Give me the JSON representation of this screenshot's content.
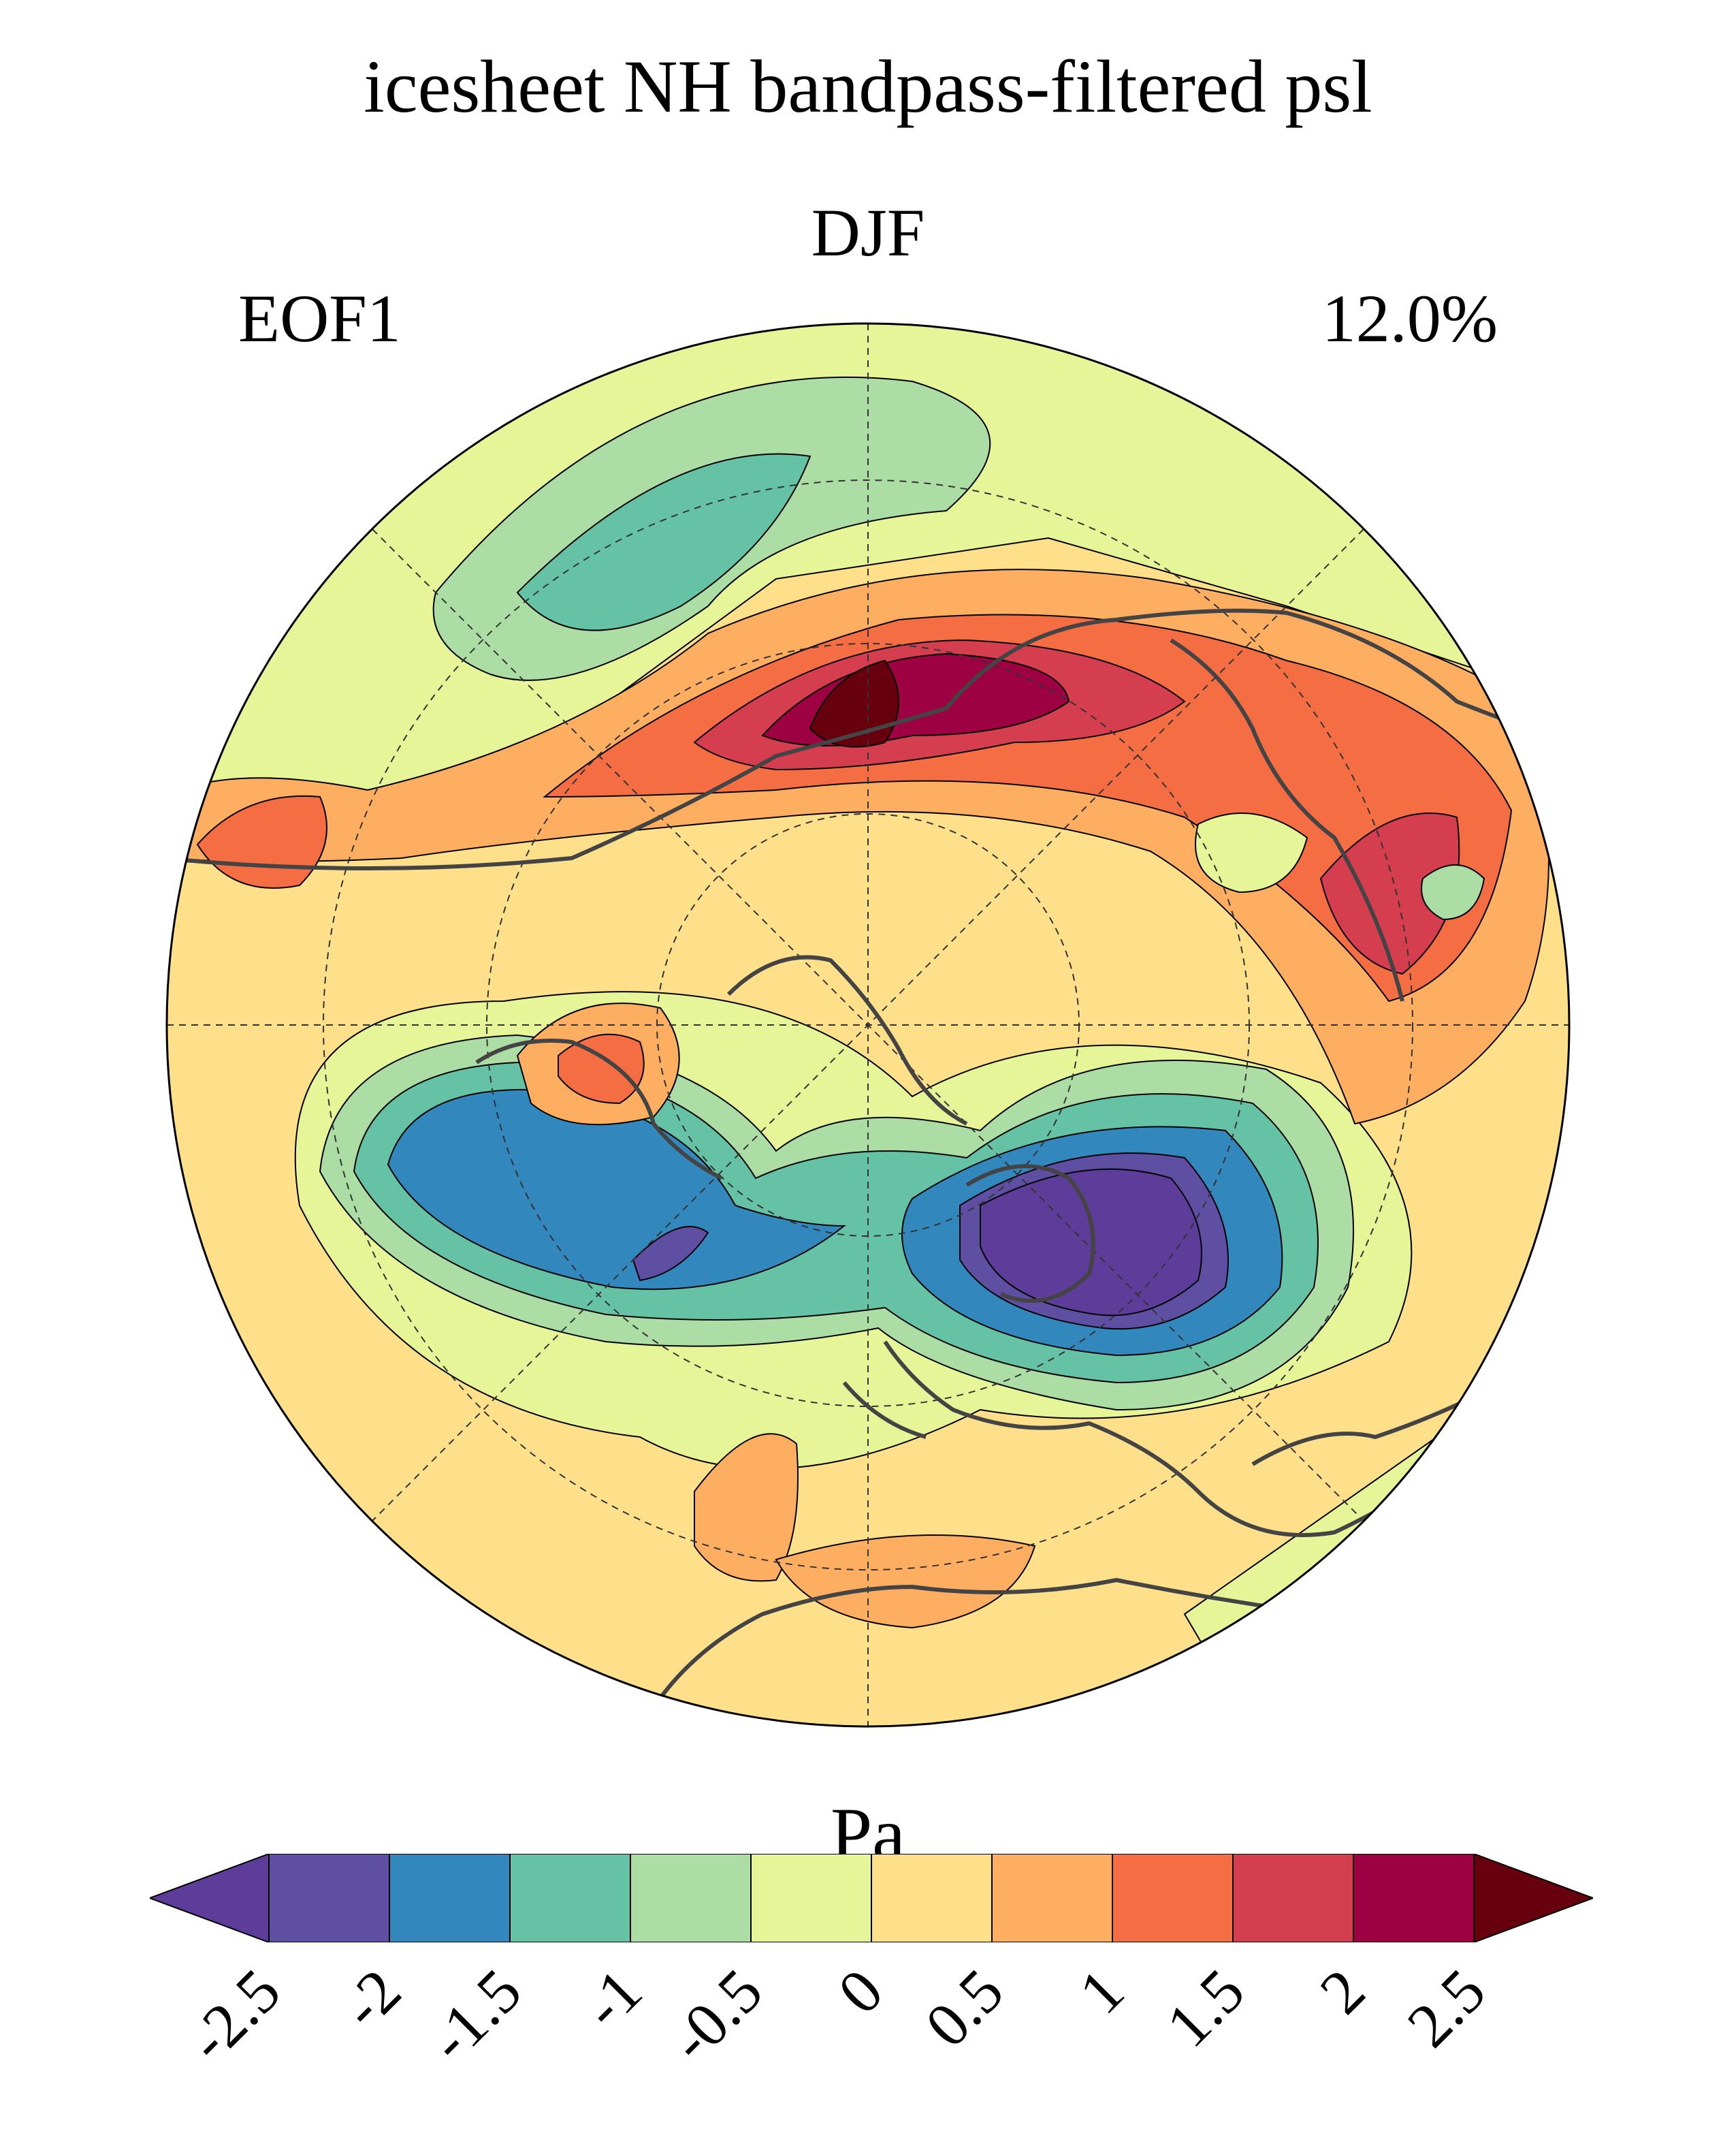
{
  "figure": {
    "title": "icesheet NH bandpass-filtered psl",
    "season": "DJF",
    "mode": "EOF1",
    "variance_explained": "12.0%"
  },
  "colorbar": {
    "units": "Pa",
    "ticks": [
      "-2.5",
      "-2",
      "-1.5",
      "-1",
      "-0.5",
      "0",
      "0.5",
      "1",
      "1.5",
      "2",
      "2.5"
    ],
    "levels": [
      -2.5,
      -2,
      -1.5,
      -1,
      -0.5,
      0,
      0.5,
      1,
      1.5,
      2,
      2.5
    ],
    "colors": [
      "#5e3c99",
      "#5e4fa2",
      "#3288bd",
      "#66c2a5",
      "#abdda4",
      "#e6f598",
      "#fee08b",
      "#fdae61",
      "#f46d43",
      "#d53e4f",
      "#9e0142",
      "#67000d"
    ],
    "extend": "both"
  },
  "map": {
    "projection": "north-polar-stereographic",
    "features": [
      "coastlines",
      "graticule"
    ]
  }
}
